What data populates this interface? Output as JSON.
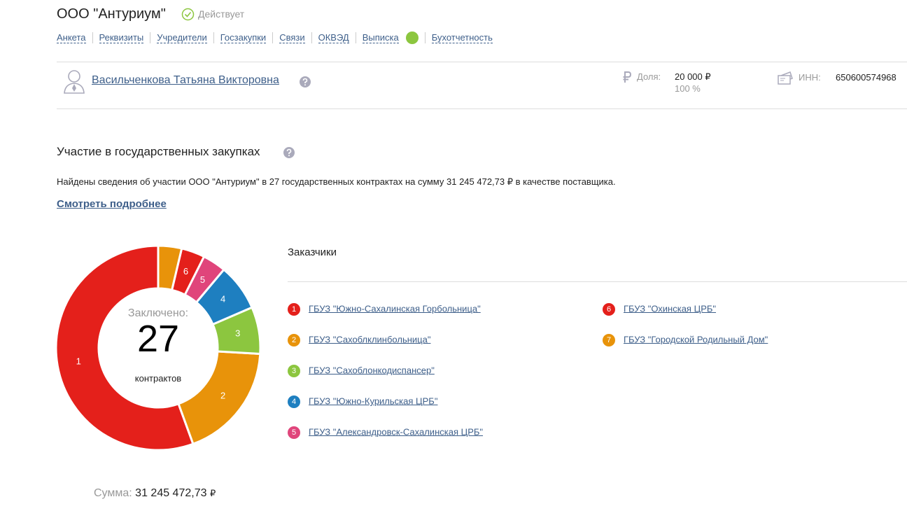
{
  "header": {
    "title": "ООО \"Антуриум\"",
    "status": "Действует"
  },
  "nav": [
    "Анкета",
    "Реквизиты",
    "Учредители",
    "Госзакупки",
    "Связи",
    "ОКВЭД",
    "Выписка",
    "Бухотчетность"
  ],
  "founder": {
    "name": "Васильченкова Татьяна Викторовна",
    "share_label": "Доля:",
    "share_amount": "20 000 ₽",
    "share_percent": "100 %",
    "inn_label": "ИНН:",
    "inn": "650600574968"
  },
  "procurement": {
    "title": "Участие в государственных закупках",
    "text": "Найдены сведения об участии ООО \"Антуриум\" в 27 государственных контрактах на сумму 31 245 472,73 ₽ в качестве поставщика.",
    "link": "Смотреть подробнее",
    "sum_label": "Сумма:",
    "sum_value": "31 245 472,73",
    "sum_currency": "₽"
  },
  "chart_data": {
    "type": "pie",
    "donut": true,
    "center_label": "Заключено:",
    "center_value": 27,
    "center_unit": "контрактов",
    "legend_title": "Заказчики",
    "categories": [
      "ГБУЗ \"Южно-Сахалинская Горбольница\"",
      "ГБУЗ \"Сахоблклинбольница\"",
      "ГБУЗ \"Сахоблонкодиспансер\"",
      "ГБУЗ \"Южно-Курильская ЦРБ\"",
      "ГБУЗ \"Александровск-Сахалинская ЦРБ\"",
      "ГБУЗ \"Охинская ЦРБ\"",
      "ГБУЗ \"Городской Родильный Дом\""
    ],
    "legend_numbers": [
      "1",
      "2",
      "3",
      "4",
      "5",
      "6",
      "7"
    ],
    "segment_labels": [
      "1",
      "2",
      "3",
      "4",
      "5",
      "6",
      null
    ],
    "values": [
      15,
      5,
      2,
      2,
      1,
      1,
      1
    ],
    "colors": [
      "#e4201b",
      "#e8930a",
      "#8cc63f",
      "#1e7fc0",
      "#e0457b",
      "#e4201b",
      "#e8930a"
    ]
  }
}
